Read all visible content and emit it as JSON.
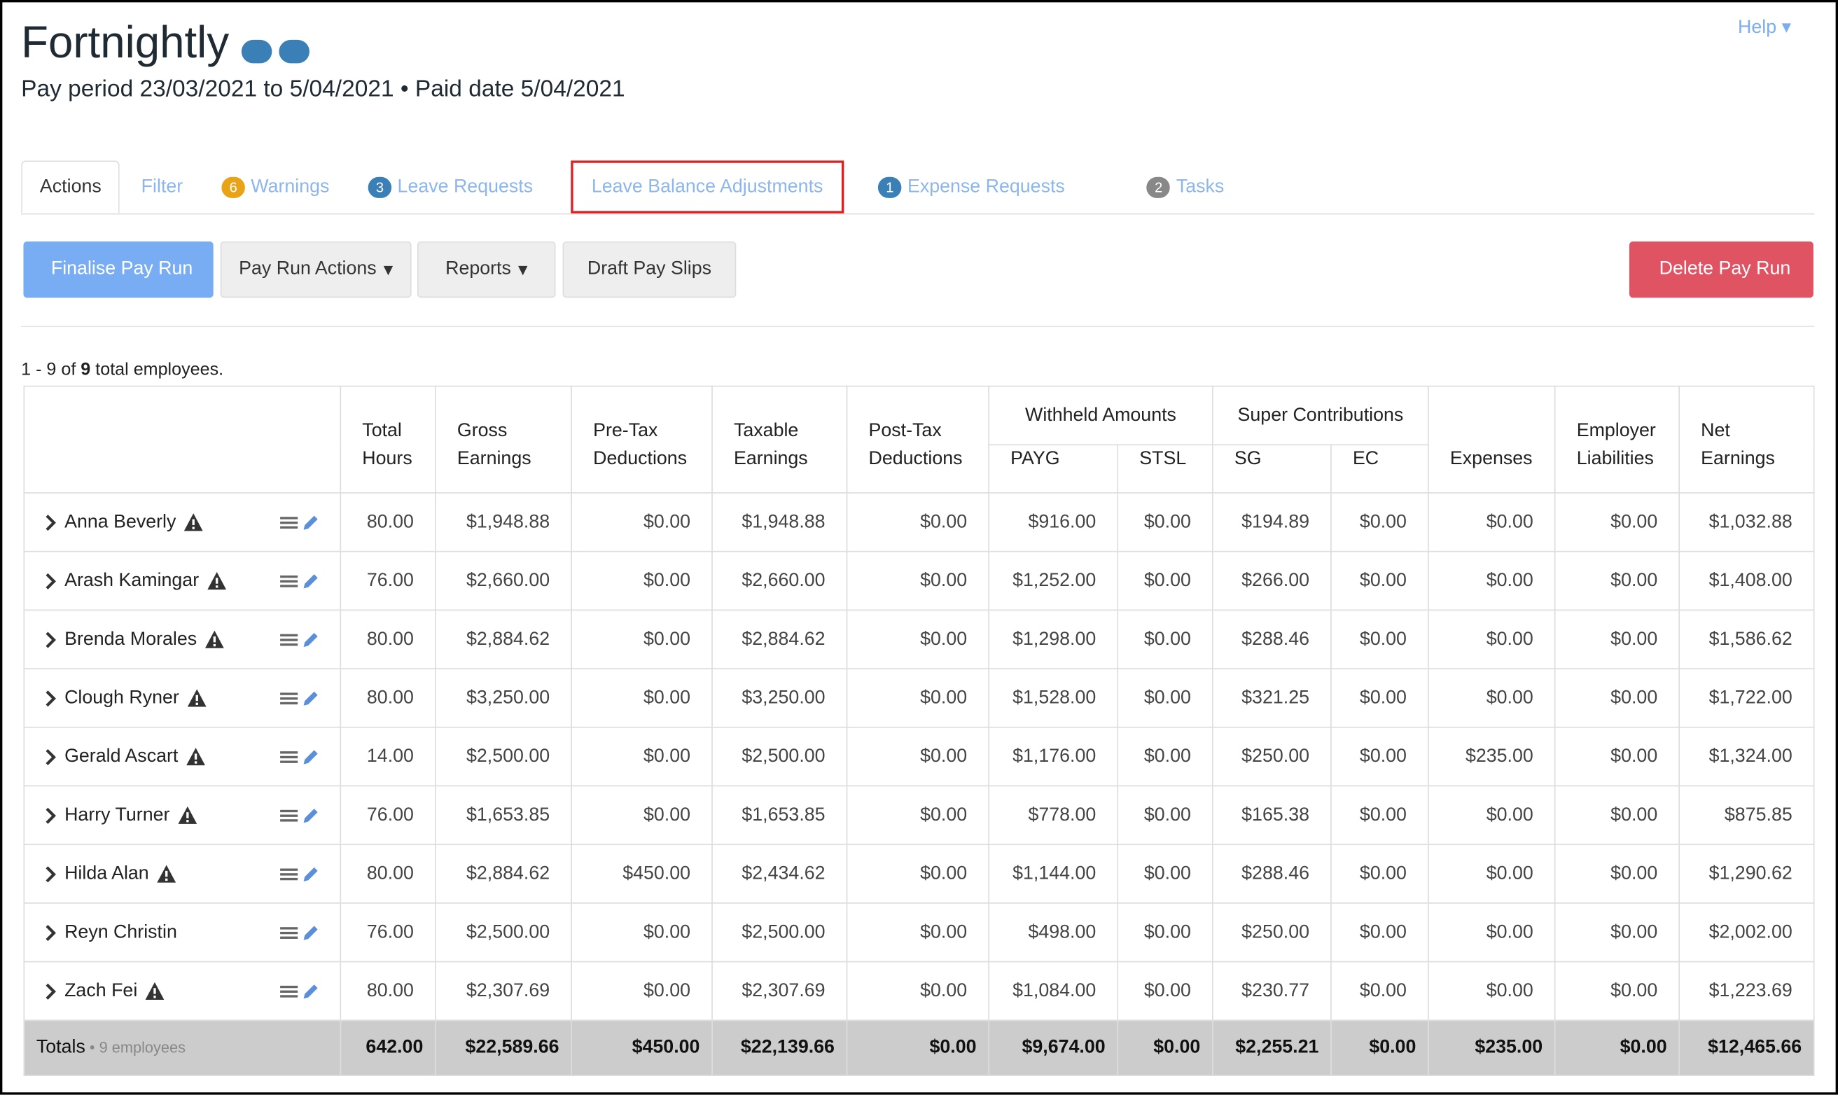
{
  "header": {
    "title": "Fortnightly",
    "subtitle": "Pay period 23/03/2021 to 5/04/2021 • Paid date 5/04/2021",
    "help": "Help"
  },
  "tabs": [
    {
      "label": "Actions"
    },
    {
      "label": "Filter"
    },
    {
      "badge": "6",
      "label": "Warnings"
    },
    {
      "badge": "3",
      "label": "Leave Requests"
    },
    {
      "label": "Leave Balance Adjustments"
    },
    {
      "badge": "1",
      "label": "Expense Requests"
    },
    {
      "badge": "2",
      "label": "Tasks"
    }
  ],
  "buttons": [
    "Finalise Pay Run",
    "Pay Run Actions",
    "Reports",
    "Draft Pay Slips",
    "Delete Pay Run"
  ],
  "summary": {
    "range": "1 - 9 of",
    "count": "9",
    "suffix": "total employees."
  },
  "table": {
    "group_headers": [
      "Withheld Amounts",
      "Super Contributions"
    ],
    "columns": [
      "Total Hours",
      "Gross Earnings",
      "Pre-Tax Deductions",
      "Taxable Earnings",
      "Post-Tax Deductions",
      "PAYG",
      "STSL",
      "SG",
      "EC",
      "Expenses",
      "Employer Liabilities",
      "Net Earnings"
    ],
    "rows": [
      {
        "name": "Anna Beverly",
        "warning": true,
        "values": [
          "80.00",
          "$1,948.88",
          "$0.00",
          "$1,948.88",
          "$0.00",
          "$916.00",
          "$0.00",
          "$194.89",
          "$0.00",
          "$0.00",
          "$0.00",
          "$1,032.88"
        ]
      },
      {
        "name": "Arash Kamingar",
        "warning": true,
        "values": [
          "76.00",
          "$2,660.00",
          "$0.00",
          "$2,660.00",
          "$0.00",
          "$1,252.00",
          "$0.00",
          "$266.00",
          "$0.00",
          "$0.00",
          "$0.00",
          "$1,408.00"
        ]
      },
      {
        "name": "Brenda Morales",
        "warning": true,
        "values": [
          "80.00",
          "$2,884.62",
          "$0.00",
          "$2,884.62",
          "$0.00",
          "$1,298.00",
          "$0.00",
          "$288.46",
          "$0.00",
          "$0.00",
          "$0.00",
          "$1,586.62"
        ]
      },
      {
        "name": "Clough Ryner",
        "warning": true,
        "values": [
          "80.00",
          "$3,250.00",
          "$0.00",
          "$3,250.00",
          "$0.00",
          "$1,528.00",
          "$0.00",
          "$321.25",
          "$0.00",
          "$0.00",
          "$0.00",
          "$1,722.00"
        ]
      },
      {
        "name": "Gerald Ascart",
        "warning": true,
        "values": [
          "14.00",
          "$2,500.00",
          "$0.00",
          "$2,500.00",
          "$0.00",
          "$1,176.00",
          "$0.00",
          "$250.00",
          "$0.00",
          "$235.00",
          "$0.00",
          "$1,324.00"
        ]
      },
      {
        "name": "Harry Turner",
        "warning": true,
        "values": [
          "76.00",
          "$1,653.85",
          "$0.00",
          "$1,653.85",
          "$0.00",
          "$778.00",
          "$0.00",
          "$165.38",
          "$0.00",
          "$0.00",
          "$0.00",
          "$875.85"
        ]
      },
      {
        "name": "Hilda Alan",
        "warning": true,
        "values": [
          "80.00",
          "$2,884.62",
          "$450.00",
          "$2,434.62",
          "$0.00",
          "$1,144.00",
          "$0.00",
          "$288.46",
          "$0.00",
          "$0.00",
          "$0.00",
          "$1,290.62"
        ]
      },
      {
        "name": "Reyn Christin",
        "warning": false,
        "values": [
          "76.00",
          "$2,500.00",
          "$0.00",
          "$2,500.00",
          "$0.00",
          "$498.00",
          "$0.00",
          "$250.00",
          "$0.00",
          "$0.00",
          "$0.00",
          "$2,002.00"
        ]
      },
      {
        "name": "Zach Fei",
        "warning": true,
        "values": [
          "80.00",
          "$2,307.69",
          "$0.00",
          "$2,307.69",
          "$0.00",
          "$1,084.00",
          "$0.00",
          "$230.77",
          "$0.00",
          "$0.00",
          "$0.00",
          "$1,223.69"
        ]
      }
    ],
    "totals": {
      "label": "Totals",
      "note": "9 employees",
      "values": [
        "642.00",
        "$22,589.66",
        "$450.00",
        "$22,139.66",
        "$0.00",
        "$9,674.00",
        "$0.00",
        "$2,255.21",
        "$0.00",
        "$235.00",
        "$0.00",
        "$12,465.66"
      ]
    }
  }
}
